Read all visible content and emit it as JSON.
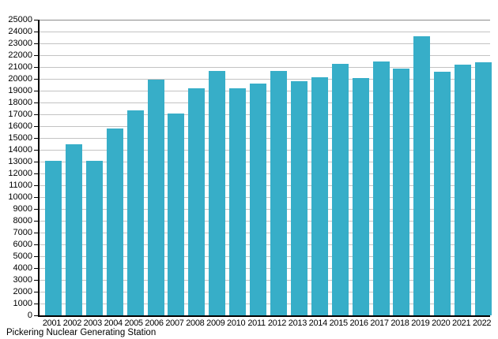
{
  "chart_data": {
    "type": "bar",
    "title": "",
    "caption": "Pickering Nuclear Generating Station",
    "categories": [
      "2001",
      "2002",
      "2003",
      "2004",
      "2005",
      "2006",
      "2007",
      "2008",
      "2009",
      "2010",
      "2011",
      "2012",
      "2013",
      "2014",
      "2015",
      "2016",
      "2017",
      "2018",
      "2019",
      "2020",
      "2021",
      "2022"
    ],
    "values": [
      13100,
      14500,
      13100,
      15800,
      17350,
      19950,
      17050,
      19200,
      20700,
      19200,
      19600,
      20700,
      19800,
      20150,
      21300,
      20050,
      21500,
      20900,
      23600,
      20600,
      21200,
      21400
    ],
    "xlabel": "",
    "ylabel": "",
    "ylim": [
      0,
      25000
    ],
    "y_tick_step": 1000,
    "y_tick_labels": [
      "0",
      "1000",
      "2000",
      "3000",
      "4000",
      "5000",
      "6000",
      "7000",
      "8000",
      "9000",
      "10000",
      "11000",
      "12000",
      "13000",
      "14000",
      "15000",
      "16000",
      "17000",
      "18000",
      "19000",
      "20000",
      "21000",
      "22000",
      "23000",
      "24000",
      "25000"
    ],
    "grid": "on",
    "legend": "none",
    "colors": {
      "bar": "#37aec8",
      "axis": "#000000",
      "gridline": "#c3c3c3",
      "gridline_top": "#8c8c8c",
      "background": "#ffffff"
    }
  }
}
